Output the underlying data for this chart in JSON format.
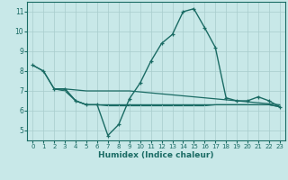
{
  "xlabel": "Humidex (Indice chaleur)",
  "xlim": [
    -0.5,
    23.5
  ],
  "ylim": [
    4.5,
    11.5
  ],
  "yticks": [
    5,
    6,
    7,
    8,
    9,
    10,
    11
  ],
  "xticks": [
    0,
    1,
    2,
    3,
    4,
    5,
    6,
    7,
    8,
    9,
    10,
    11,
    12,
    13,
    14,
    15,
    16,
    17,
    18,
    19,
    20,
    21,
    22,
    23
  ],
  "bg_color": "#c8e8e8",
  "grid_color": "#a8cccc",
  "line_color": "#1a6b64",
  "line1_x": [
    0,
    1,
    2,
    3,
    4,
    5,
    6,
    7,
    8,
    9,
    10,
    11,
    12,
    13,
    14,
    15,
    16,
    17,
    18,
    19,
    20,
    21,
    22,
    23
  ],
  "line1_y": [
    8.3,
    8.0,
    7.1,
    7.1,
    6.5,
    6.3,
    6.3,
    4.75,
    5.3,
    6.6,
    7.4,
    8.5,
    9.4,
    9.85,
    11.0,
    11.15,
    10.2,
    9.2,
    6.65,
    6.5,
    6.5,
    6.7,
    6.5,
    6.2
  ],
  "line2_x": [
    0,
    1,
    2,
    3,
    4,
    5,
    6,
    7,
    8,
    9,
    10,
    11,
    12,
    13,
    14,
    15,
    16,
    17,
    18,
    19,
    20,
    21,
    22,
    23
  ],
  "line2_y": [
    8.3,
    8.0,
    7.1,
    7.1,
    7.05,
    7.0,
    7.0,
    7.0,
    7.0,
    7.0,
    6.95,
    6.9,
    6.85,
    6.8,
    6.75,
    6.7,
    6.65,
    6.6,
    6.55,
    6.5,
    6.45,
    6.4,
    6.35,
    6.3
  ],
  "line3_x": [
    2,
    3,
    4,
    5,
    6,
    7,
    8,
    9,
    10,
    11,
    12,
    13,
    14,
    15,
    16,
    17,
    18,
    19,
    20,
    21,
    22,
    23
  ],
  "line3_y": [
    7.1,
    7.1,
    6.5,
    6.3,
    6.3,
    6.3,
    6.3,
    6.3,
    6.3,
    6.3,
    6.3,
    6.3,
    6.3,
    6.3,
    6.3,
    6.3,
    6.3,
    6.3,
    6.3,
    6.3,
    6.3,
    6.2
  ],
  "line4_x": [
    2,
    3,
    4,
    5,
    6,
    7,
    8,
    9,
    10,
    11,
    12,
    13,
    14,
    15,
    16,
    17,
    18,
    19,
    20,
    21,
    22,
    23
  ],
  "line4_y": [
    7.1,
    7.0,
    6.5,
    6.3,
    6.3,
    6.25,
    6.25,
    6.25,
    6.25,
    6.25,
    6.25,
    6.25,
    6.25,
    6.25,
    6.25,
    6.3,
    6.3,
    6.3,
    6.3,
    6.3,
    6.3,
    6.2
  ]
}
